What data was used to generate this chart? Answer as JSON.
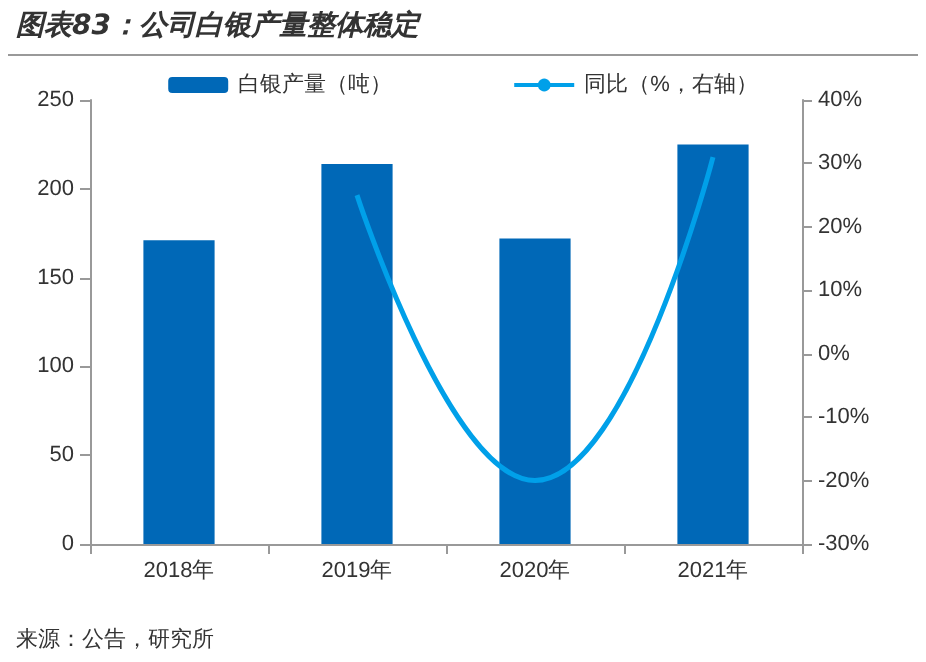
{
  "chart_data": {
    "type": "bar",
    "title": "图表83：公司白银产量整体稳定",
    "annotations": [
      "来源：公告，研究所"
    ],
    "categories": [
      "2018年",
      "2019年",
      "2020年",
      "2021年"
    ],
    "series": [
      {
        "name": "白银产量（吨）",
        "color": "#0068b7",
        "values": [
          171,
          214,
          172,
          225
        ]
      },
      {
        "name": "同比（%，右轴）",
        "type": "line",
        "axis": "y2",
        "color": "#00a0e9",
        "values": [
          null,
          25,
          -20,
          31
        ]
      }
    ],
    "ylim": [
      0,
      250
    ],
    "yticks": [
      0,
      50,
      100,
      150,
      200,
      250
    ],
    "y2lim": [
      -30,
      40
    ],
    "y2ticks": [
      {
        "value": -30,
        "label": "-30%"
      },
      {
        "value": -20,
        "label": "-20%"
      },
      {
        "value": -10,
        "label": "-10%"
      },
      {
        "value": 0,
        "label": "0%"
      },
      {
        "value": 10,
        "label": "10%"
      },
      {
        "value": 20,
        "label": "20%"
      },
      {
        "value": 30,
        "label": "30%"
      },
      {
        "value": 40,
        "label": "40%"
      }
    ],
    "grid": false,
    "legend": "top",
    "marker": "none"
  }
}
